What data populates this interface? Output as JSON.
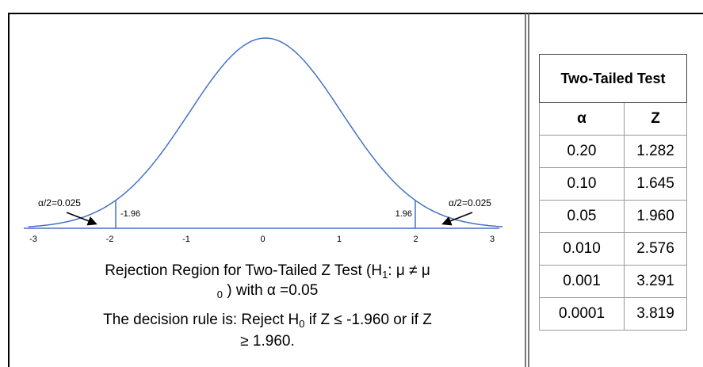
{
  "diagram": {
    "axis_labels": [
      "-3",
      "-2",
      "-1",
      "0",
      "1",
      "2",
      "3"
    ],
    "left_alpha": "α/2=0.025",
    "right_alpha": "α/2=0.025",
    "left_critical": "-1.96",
    "right_critical": "1.96"
  },
  "caption": {
    "line1": [
      "Rejection Region for Two-Tailed Z Test (H",
      "1",
      ": μ ≠ μ"
    ],
    "line2": [
      "0",
      " ) with α =0.05"
    ],
    "line3": [
      "The decision rule is: Reject H",
      "0",
      " if Z ≤ -1.960 or if Z"
    ],
    "line4": "≥ 1.960."
  },
  "table": {
    "title": "Two-Tailed Test",
    "columns": [
      "α",
      "Z"
    ],
    "rows": [
      [
        "0.20",
        "1.282"
      ],
      [
        "0.10",
        "1.645"
      ],
      [
        "0.05",
        "1.960"
      ],
      [
        "0.010",
        "2.576"
      ],
      [
        "0.001",
        "3.291"
      ],
      [
        "0.0001",
        "3.819"
      ]
    ]
  }
}
